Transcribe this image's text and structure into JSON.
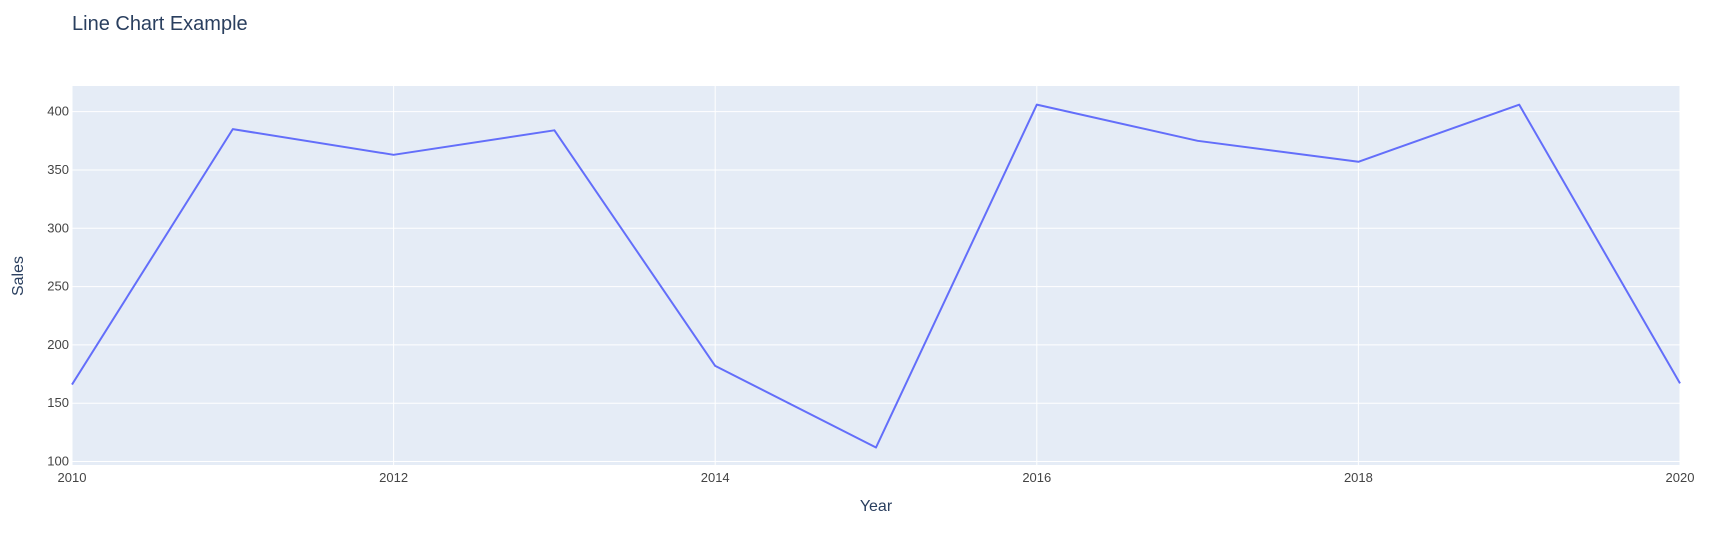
{
  "chart_data": {
    "type": "line",
    "title": "Line Chart Example",
    "xlabel": "Year",
    "ylabel": "Sales",
    "x": [
      2010,
      2011,
      2012,
      2013,
      2014,
      2015,
      2016,
      2017,
      2018,
      2019,
      2020
    ],
    "series": [
      {
        "values": [
          166,
          385,
          363,
          384,
          182,
          112,
          406,
          375,
          357,
          406,
          167
        ],
        "color": "#636efa"
      }
    ],
    "xlim": [
      2010,
      2020
    ],
    "ylim": [
      97,
      422
    ],
    "x_ticks": [
      2010,
      2012,
      2014,
      2016,
      2018,
      2020
    ],
    "y_ticks": [
      100,
      150,
      200,
      250,
      300,
      350,
      400
    ],
    "grid": true,
    "legend": "none",
    "colors": {
      "plot_background": "#e5ecf6",
      "grid": "#ffffff",
      "text": "#2a3f5f",
      "tick_text": "#444444"
    }
  }
}
